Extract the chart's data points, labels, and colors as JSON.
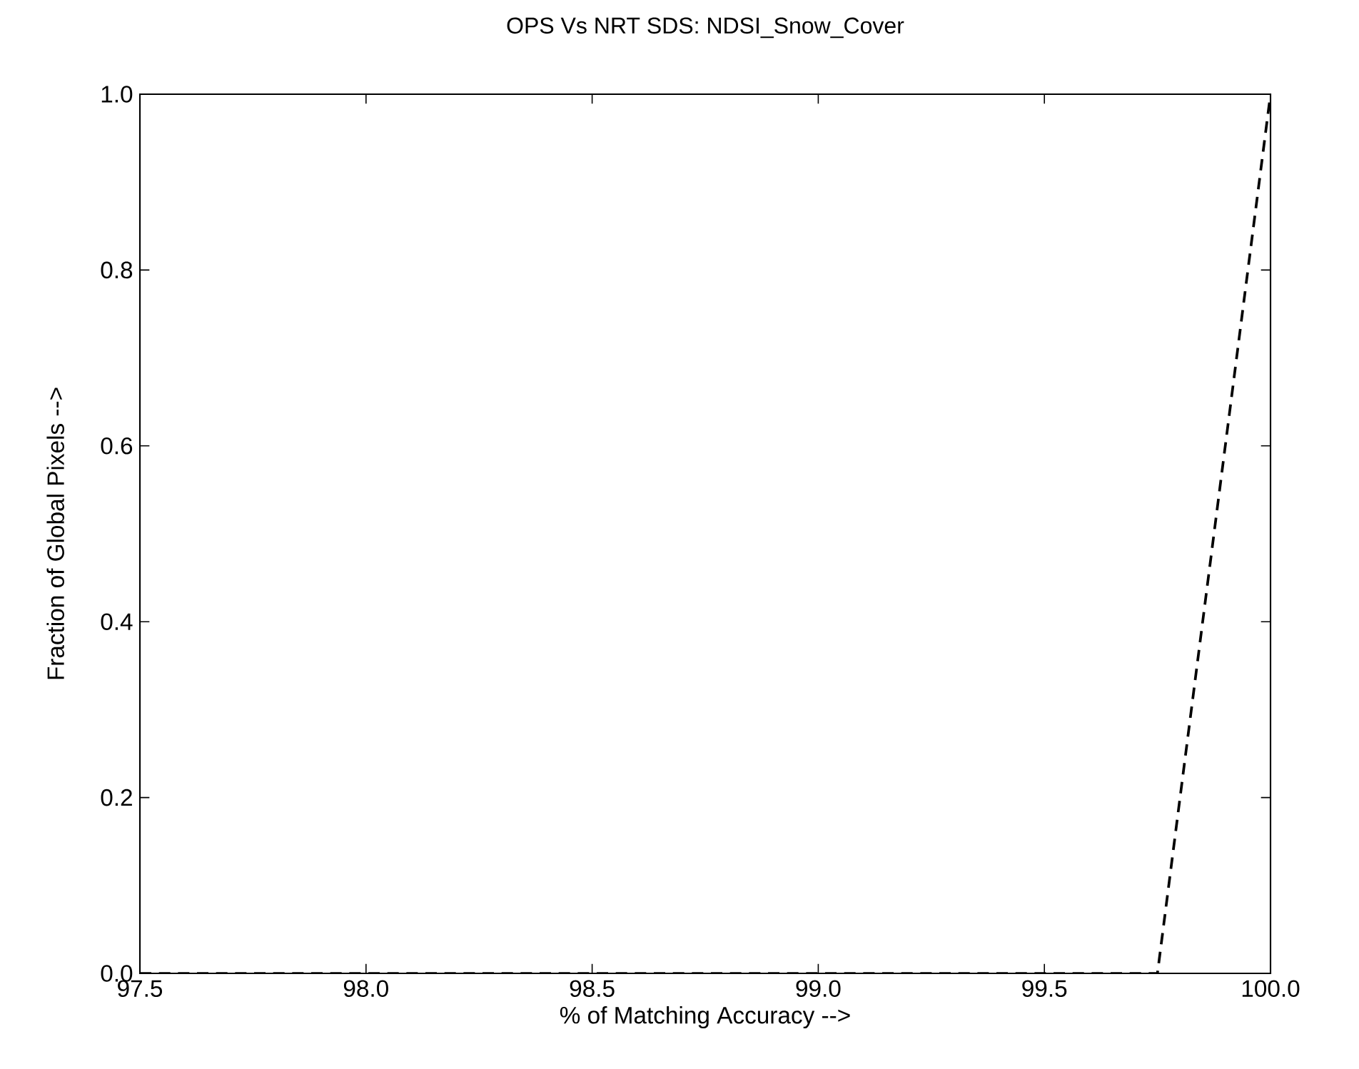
{
  "chart_data": {
    "type": "line",
    "title": "OPS Vs NRT SDS: NDSI_Snow_Cover",
    "xlabel": "% of Matching Accuracy -->",
    "ylabel": "Fraction of Global Pixels -->",
    "x": [
      97.5,
      99.75,
      100.0
    ],
    "series": [
      {
        "color": "#000000",
        "values": [
          0,
          0,
          1
        ]
      }
    ],
    "xlim": [
      97.5,
      100.0
    ],
    "ylim": [
      0,
      1
    ],
    "xticks": [
      97.5,
      {
        "value": 98,
        "label": "98.0"
      },
      98.5,
      {
        "value": 99,
        "label": "99.0"
      },
      99.5,
      {
        "value": 100,
        "label": "100.0"
      }
    ],
    "yticks": [
      {
        "value": 0,
        "label": "0.0"
      },
      0.2,
      0.4,
      0.6,
      0.8,
      {
        "value": 1,
        "label": "1.0"
      }
    ],
    "line_style": "dashed",
    "marker": "none"
  }
}
